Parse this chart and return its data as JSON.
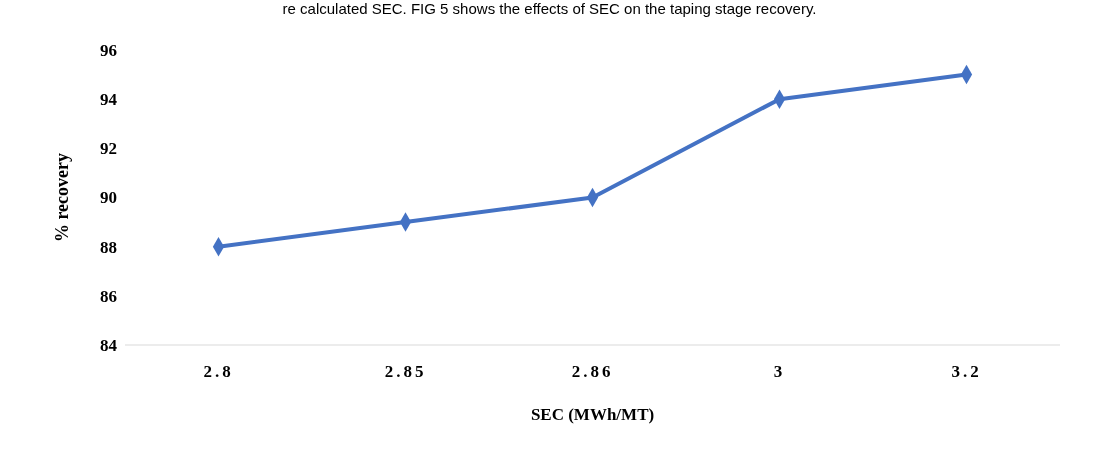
{
  "chart_data": {
    "type": "line",
    "annotations": [
      "re calculated SEC. FIG 5 shows the effects of SEC on the taping stage recovery."
    ],
    "xlabel": "SEC (MWh/MT)",
    "ylabel": "% recovery",
    "categories": [
      "2.8",
      "2.85",
      "2.86",
      "3",
      "3.2"
    ],
    "series": [
      {
        "color": "#4472c4",
        "values": [
          88,
          89,
          90,
          94,
          95
        ]
      }
    ],
    "ylim": [
      84,
      96
    ],
    "yticks": [
      84,
      86,
      88,
      90,
      92,
      94,
      96
    ],
    "grid": false,
    "marker": "diamond",
    "line_style": "solid"
  }
}
